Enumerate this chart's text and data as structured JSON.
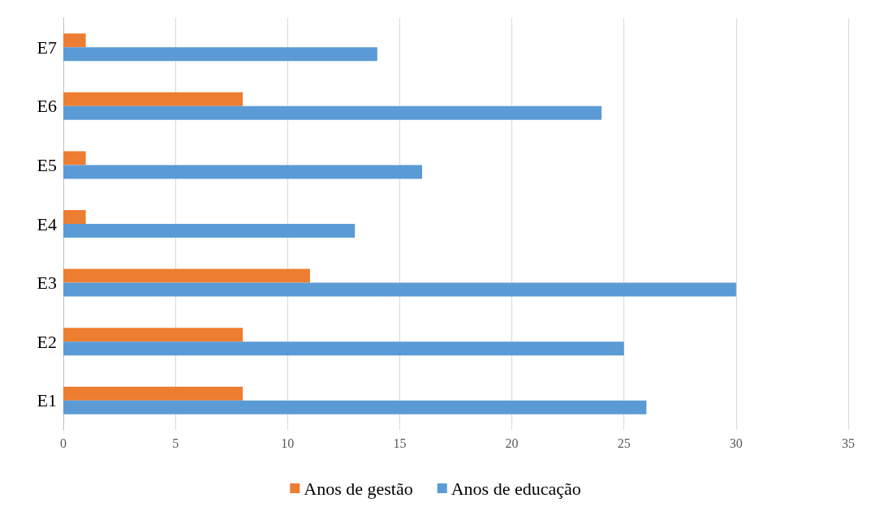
{
  "chart_data": {
    "type": "bar",
    "orientation": "horizontal",
    "categories": [
      "E7",
      "E6",
      "E5",
      "E4",
      "E3",
      "E2",
      "E1"
    ],
    "series": [
      {
        "name": "Anos de gestão",
        "color": "#ed7d31",
        "values": [
          1,
          8,
          1,
          1,
          11,
          8,
          8
        ]
      },
      {
        "name": "Anos de educação",
        "color": "#5b9bd5",
        "values": [
          14,
          24,
          16,
          13,
          30,
          25,
          26
        ]
      }
    ],
    "xlim": [
      0,
      35
    ],
    "xticks": [
      0,
      5,
      10,
      15,
      20,
      25,
      30,
      35
    ],
    "grid": "x",
    "legend": "bottom"
  }
}
